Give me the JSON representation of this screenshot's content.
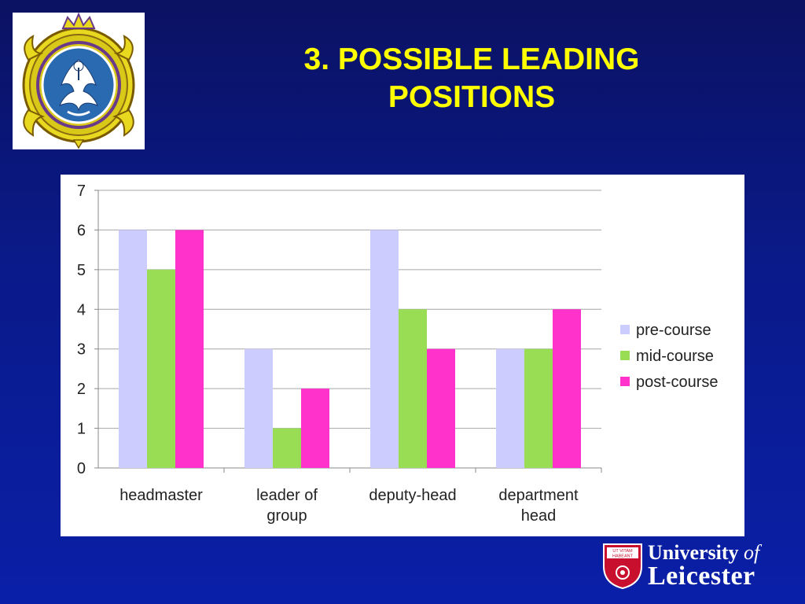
{
  "slide": {
    "title_line1": "3. POSSIBLE LEADING",
    "title_line2": "POSITIONS"
  },
  "logo": {
    "university_word": "University",
    "of_word": "of",
    "leicester_word": "Leicester",
    "shield_motto_1": "UT VITAM",
    "shield_motto_2": "HABEANT"
  },
  "chart_data": {
    "type": "bar",
    "categories": [
      [
        "headmaster"
      ],
      [
        "leader of",
        "group"
      ],
      [
        "deputy-head"
      ],
      [
        "department",
        "head"
      ]
    ],
    "series": [
      {
        "name": "pre-course",
        "color": "#ccccff",
        "values": [
          6,
          3,
          6,
          3
        ]
      },
      {
        "name": "mid-course",
        "color": "#99dd55",
        "values": [
          5,
          1,
          4,
          3
        ]
      },
      {
        "name": "post-course",
        "color": "#ff33cc",
        "values": [
          6,
          2,
          3,
          4
        ]
      }
    ],
    "ylim": [
      0,
      7
    ],
    "yticks": [
      0,
      1,
      2,
      3,
      4,
      5,
      6,
      7
    ],
    "grid": true,
    "legend_position": "right"
  },
  "colors": {
    "title": "#ffff00",
    "background": "#0a1a8a"
  }
}
